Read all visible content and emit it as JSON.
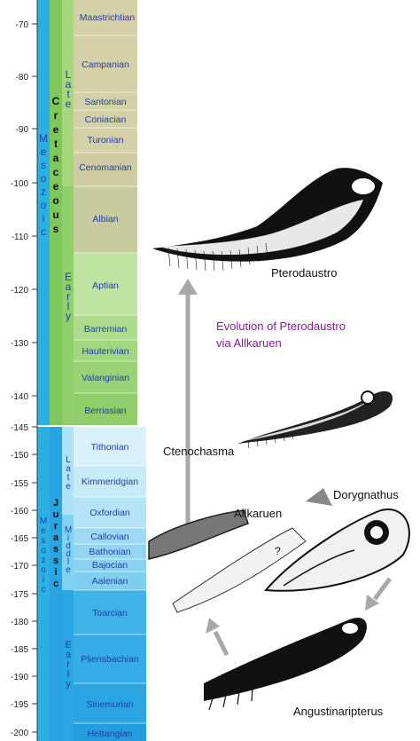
{
  "axis": {
    "ticks": [
      "-70",
      "-80",
      "-90",
      "-100",
      "-110",
      "-120",
      "-130",
      "-140",
      "-145",
      "-150",
      "-155",
      "-160",
      "-165",
      "-170",
      "-175",
      "-180",
      "-185",
      "-190",
      "-195",
      "-200"
    ]
  },
  "eras": {
    "mesozoic_upper": "Mesozoic",
    "mesozoic_lower": "Mesozoic",
    "cretaceous": "Cretaceous",
    "jurassic": "Jurassic"
  },
  "epochs": {
    "cret_late": "Late",
    "cret_early": "Early",
    "jur_late": "Late",
    "jur_middle": "Middle",
    "jur_early": "Early"
  },
  "stages": {
    "maastrichtian": "Maastrichtian",
    "campanian": "Campanian",
    "santonian": "Santonian",
    "coniacian": "Coniacian",
    "turonian": "Turonian",
    "cenomanian": "Cenomanian",
    "albian": "Albian",
    "aptian": "Aptian",
    "barremian": "Barremian",
    "hauterivian": "Hauterivian",
    "valanginian": "Valanginian",
    "berriasian": "Berriasian",
    "tithonian": "Tithonian",
    "kimmeridgian": "Kimmeridgian",
    "oxfordian": "Oxfordian",
    "callovian": "Callovian",
    "bathonian": "Bathonian",
    "bajocian": "Bajocian",
    "aalenian": "Aalenian",
    "toarcian": "Toarcian",
    "pliensbachian": "Pliensbachian",
    "sinemurian": "Sinemurian",
    "hettangian": "Hettangian"
  },
  "species": {
    "pterodaustro": "Pterodaustro",
    "ctenochasma": "Ctenochasma",
    "allkaruen": "Allkaruen",
    "dorygnathus": "Dorygnathus",
    "angustinaripterus": "Angustinaripterus"
  },
  "title": {
    "line1": "Evolution of Pterodaustro",
    "line2": "via Allkaruen"
  },
  "misc": {
    "question_mark": "?"
  },
  "colors": {
    "title": "#8a1a9b",
    "arrow": "#a8a8a8",
    "stage_text": "#1f3fa8",
    "cret_band": "#7fc75a",
    "jur_band": "#2aa3e0"
  }
}
